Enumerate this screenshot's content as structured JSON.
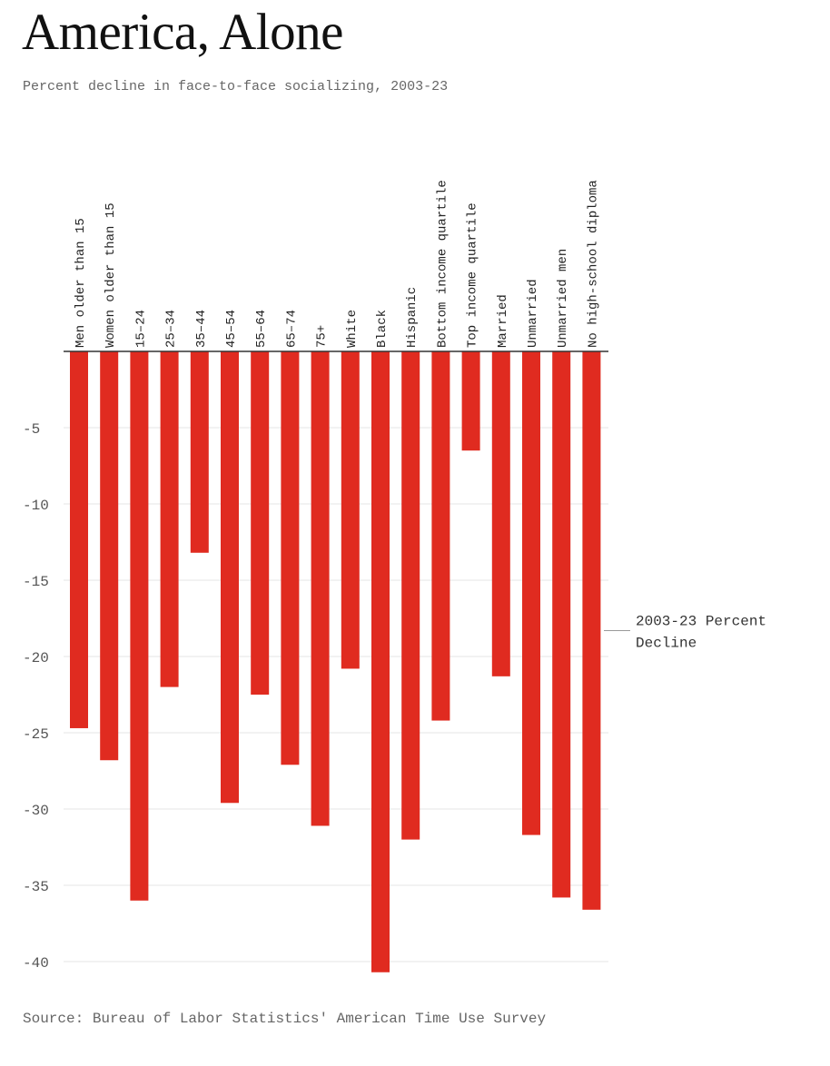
{
  "header": {
    "title": "America, Alone",
    "subtitle": "Percent decline in face-to-face socializing, 2003-23"
  },
  "footer": {
    "source": "Source: Bureau of Labor Statistics' American Time Use Survey"
  },
  "colors": {
    "bar": "#e02b20",
    "grid": "#e6e6e6",
    "axis": "#333333",
    "tick_text": "#555555",
    "annotation_line": "#999999"
  },
  "chart_data": {
    "type": "bar",
    "title": "America, Alone",
    "subtitle": "Percent decline in face-to-face socializing, 2003-23",
    "categories": [
      "Men older than 15",
      "Women older than 15",
      "15–24",
      "25–34",
      "35–44",
      "45–54",
      "55–64",
      "65–74",
      "75+",
      "White",
      "Black",
      "Hispanic",
      "Bottom income quartile",
      "Top income quartile",
      "Married",
      "Unmarried",
      "Unmarried men",
      "No high-school diploma"
    ],
    "series": [
      {
        "name": "2003-23 Percent Decline",
        "values": [
          -24.7,
          -26.8,
          -36.0,
          -22.0,
          -13.2,
          -29.6,
          -22.5,
          -27.1,
          -31.1,
          -20.8,
          -40.7,
          -32.0,
          -24.2,
          -6.5,
          -21.3,
          -31.7,
          -35.8,
          -36.6
        ]
      }
    ],
    "annotation": {
      "text_lines": [
        "2003-23 Percent",
        "Decline"
      ],
      "value": -18.3
    },
    "yticks": [
      -5,
      -10,
      -15,
      -20,
      -25,
      -30,
      -35,
      -40
    ],
    "ylim": [
      -41.5,
      0
    ],
    "xlabel": "",
    "ylabel": "",
    "grid": true,
    "category_labels_position": "top, rotated vertical"
  }
}
